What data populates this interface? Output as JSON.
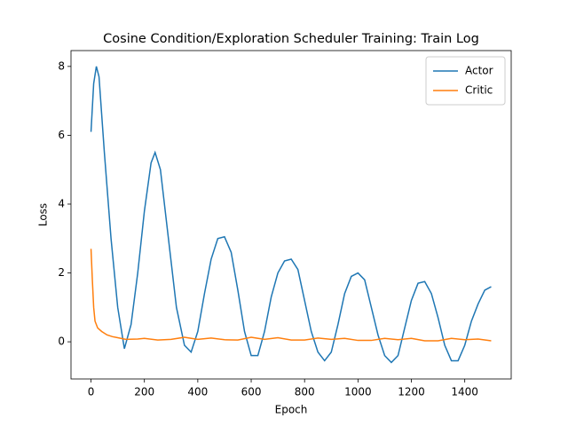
{
  "chart_data": {
    "type": "line",
    "title": "Cosine Condition/Exploration Scheduler Training: Train Log",
    "x_label": "Epoch",
    "y_label": "Loss",
    "xlim": [
      -74.95,
      1573.95
    ],
    "ylim": [
      -1.08,
      8.46
    ],
    "xticks": [
      0,
      200,
      400,
      600,
      800,
      1000,
      1200,
      1400
    ],
    "yticks": [
      0,
      2,
      4,
      6,
      8
    ],
    "legend": "upper right",
    "series": [
      {
        "name": "Actor",
        "color": "#1f77b4",
        "x": [
          0,
          10,
          20,
          30,
          50,
          75,
          100,
          125,
          150,
          175,
          200,
          225,
          240,
          260,
          290,
          320,
          350,
          375,
          400,
          425,
          450,
          475,
          500,
          525,
          550,
          575,
          600,
          625,
          650,
          675,
          700,
          725,
          750,
          775,
          800,
          825,
          850,
          875,
          900,
          925,
          950,
          975,
          1000,
          1025,
          1050,
          1075,
          1100,
          1125,
          1150,
          1175,
          1200,
          1225,
          1250,
          1275,
          1300,
          1325,
          1350,
          1375,
          1400,
          1425,
          1450,
          1475,
          1499
        ],
        "values": [
          6.1,
          7.5,
          8.0,
          7.7,
          5.5,
          3.0,
          1.0,
          -0.2,
          0.5,
          2.0,
          3.8,
          5.2,
          5.5,
          5.0,
          3.0,
          1.0,
          -0.1,
          -0.3,
          0.3,
          1.4,
          2.4,
          3.0,
          3.05,
          2.6,
          1.5,
          0.3,
          -0.4,
          -0.4,
          0.3,
          1.3,
          2.0,
          2.35,
          2.4,
          2.1,
          1.2,
          0.3,
          -0.3,
          -0.55,
          -0.3,
          0.5,
          1.4,
          1.9,
          2.0,
          1.8,
          1.0,
          0.2,
          -0.4,
          -0.6,
          -0.4,
          0.4,
          1.2,
          1.7,
          1.75,
          1.4,
          0.7,
          -0.1,
          -0.55,
          -0.55,
          -0.1,
          0.6,
          1.1,
          1.5,
          1.6
        ]
      },
      {
        "name": "Critic",
        "color": "#ff7f0e",
        "x": [
          0,
          5,
          10,
          15,
          25,
          40,
          60,
          80,
          100,
          130,
          175,
          200,
          250,
          300,
          350,
          400,
          450,
          500,
          550,
          600,
          650,
          700,
          750,
          800,
          850,
          900,
          950,
          1000,
          1050,
          1100,
          1150,
          1200,
          1250,
          1300,
          1350,
          1400,
          1450,
          1499
        ],
        "values": [
          2.7,
          1.8,
          1.0,
          0.6,
          0.4,
          0.3,
          0.2,
          0.15,
          0.12,
          0.07,
          0.08,
          0.1,
          0.05,
          0.07,
          0.13,
          0.07,
          0.11,
          0.06,
          0.05,
          0.13,
          0.07,
          0.12,
          0.05,
          0.05,
          0.11,
          0.07,
          0.1,
          0.04,
          0.04,
          0.1,
          0.06,
          0.1,
          0.03,
          0.03,
          0.1,
          0.06,
          0.08,
          0.03
        ]
      }
    ]
  }
}
